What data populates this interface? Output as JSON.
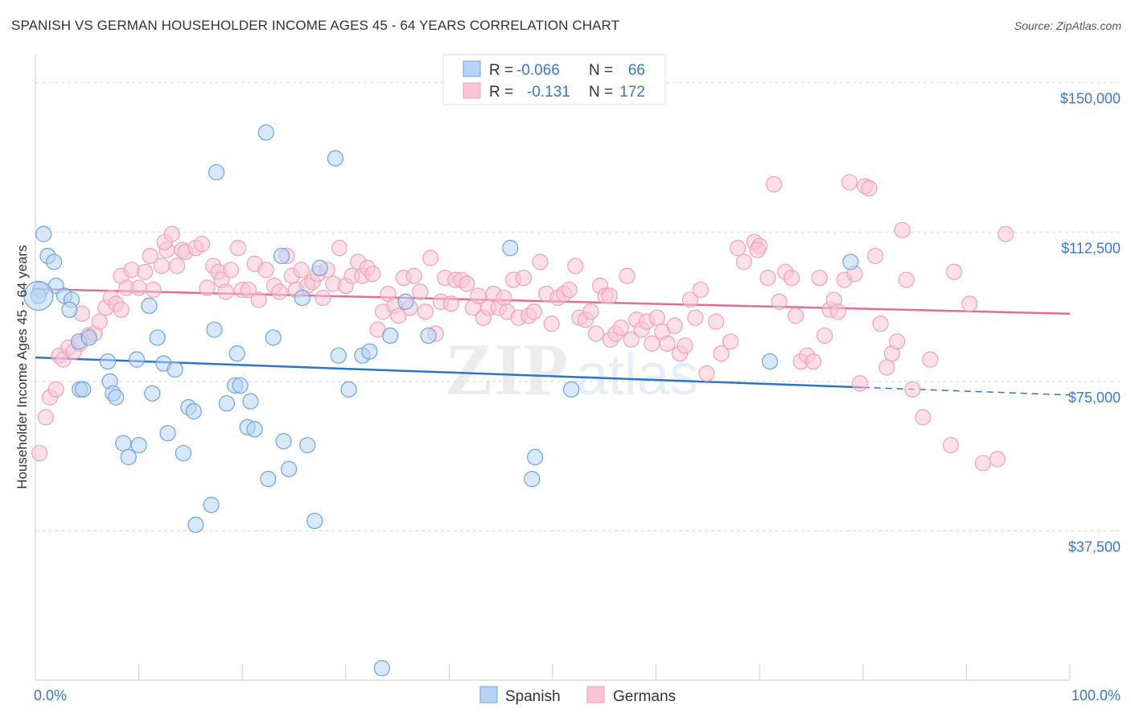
{
  "title": "SPANISH VS GERMAN HOUSEHOLDER INCOME AGES 45 - 64 YEARS CORRELATION CHART",
  "source": "Source: ZipAtlas.com",
  "watermark": {
    "zip": "ZIP",
    "atlas": "atlas"
  },
  "chart_data": {
    "type": "scatter",
    "xlabel": "",
    "ylabel": "Householder Income Ages 45 - 64 years",
    "xlim": [
      0,
      100
    ],
    "ylim": [
      0,
      155000
    ],
    "x_tick_labels": {
      "left": "0.0%",
      "right": "100.0%"
    },
    "y_ticks": [
      {
        "value": 150000,
        "label": "$150,000"
      },
      {
        "value": 112500,
        "label": "$112,500"
      },
      {
        "value": 75000,
        "label": "$75,000"
      },
      {
        "value": 37500,
        "label": "$37,500"
      }
    ],
    "legend_stats": [
      {
        "r_label": "R =",
        "r_value": "-0.066",
        "n_label": "N =",
        "n_value": "66"
      },
      {
        "r_label": "R =",
        "r_value": "-0.131",
        "n_label": "N =",
        "n_value": "172"
      }
    ],
    "series": [
      {
        "name": "Spanish",
        "color": "#6aa4e0",
        "fill": "#b8d4f4",
        "line_color": "#2e74c9",
        "trend": {
          "x0": 0,
          "y0": 81000,
          "x1": 80,
          "y1": 73500,
          "dash_to": 100,
          "dash_y": 71600
        },
        "points": [
          [
            0.5,
            98000
          ],
          [
            0.8,
            112000
          ],
          [
            1.2,
            106500
          ],
          [
            1.8,
            105000
          ],
          [
            2,
            99000
          ],
          [
            2.8,
            96500
          ],
          [
            3.5,
            95500
          ],
          [
            3.3,
            93000
          ],
          [
            4.2,
            85000
          ],
          [
            5.2,
            86000
          ],
          [
            4.3,
            73000
          ],
          [
            4.6,
            73000
          ],
          [
            7,
            80000
          ],
          [
            7.2,
            75000
          ],
          [
            7.5,
            72000
          ],
          [
            7.8,
            71000
          ],
          [
            8.5,
            59500
          ],
          [
            9,
            56000
          ],
          [
            10,
            59000
          ],
          [
            9.8,
            80500
          ],
          [
            11,
            94000
          ],
          [
            11.3,
            72000
          ],
          [
            11.8,
            86000
          ],
          [
            12.4,
            79500
          ],
          [
            13.5,
            78000
          ],
          [
            12.8,
            62000
          ],
          [
            14.3,
            57000
          ],
          [
            14.8,
            68500
          ],
          [
            15.3,
            67500
          ],
          [
            15.5,
            39000
          ],
          [
            17,
            44000
          ],
          [
            17.3,
            88000
          ],
          [
            17.5,
            127500
          ],
          [
            18.5,
            69500
          ],
          [
            19.3,
            74000
          ],
          [
            19.5,
            82000
          ],
          [
            19.8,
            74000
          ],
          [
            20.5,
            63500
          ],
          [
            20.8,
            70000
          ],
          [
            21.2,
            63000
          ],
          [
            22.3,
            137500
          ],
          [
            22.5,
            50500
          ],
          [
            23,
            86000
          ],
          [
            23.8,
            106500
          ],
          [
            24,
            60000
          ],
          [
            24.5,
            53000
          ],
          [
            25.8,
            96000
          ],
          [
            26.3,
            59000
          ],
          [
            27,
            40000
          ],
          [
            27.5,
            103500
          ],
          [
            29,
            131000
          ],
          [
            29.3,
            81500
          ],
          [
            30.3,
            73000
          ],
          [
            31.6,
            81500
          ],
          [
            32.3,
            82500
          ],
          [
            34.3,
            86500
          ],
          [
            33.5,
            3000
          ],
          [
            35.8,
            95000
          ],
          [
            38,
            86500
          ],
          [
            45.9,
            108500
          ],
          [
            48,
            50500
          ],
          [
            48.3,
            56000
          ],
          [
            51.8,
            73000
          ],
          [
            71,
            80000
          ],
          [
            78.8,
            105000
          ],
          [
            0.3,
            96500
          ]
        ]
      },
      {
        "name": "Germans",
        "color": "#f0a0ba",
        "fill": "#fac4d4",
        "line_color": "#e26d96",
        "trend": {
          "x0": 0,
          "y0": 98200,
          "x1": 100,
          "y1": 92000
        },
        "points": [
          [
            0.4,
            57000
          ],
          [
            1.0,
            66000
          ],
          [
            1.4,
            71000
          ],
          [
            2.0,
            73000
          ],
          [
            2.3,
            81500
          ],
          [
            2.7,
            80500
          ],
          [
            3.2,
            83500
          ],
          [
            3.7,
            82500
          ],
          [
            4.3,
            84500
          ],
          [
            4.5,
            92000
          ],
          [
            5.1,
            86500
          ],
          [
            5.7,
            87000
          ],
          [
            6.2,
            90000
          ],
          [
            6.8,
            93500
          ],
          [
            7.3,
            96000
          ],
          [
            7.8,
            94500
          ],
          [
            8.3,
            93000
          ],
          [
            8.3,
            101500
          ],
          [
            8.8,
            98500
          ],
          [
            9.3,
            103000
          ],
          [
            10,
            98500
          ],
          [
            10.6,
            102500
          ],
          [
            11.1,
            106500
          ],
          [
            11.4,
            98000
          ],
          [
            12.2,
            104000
          ],
          [
            12.7,
            108000
          ],
          [
            12.5,
            110000
          ],
          [
            13.2,
            112000
          ],
          [
            13.7,
            104000
          ],
          [
            14.2,
            108000
          ],
          [
            14.5,
            107500
          ],
          [
            15.5,
            108500
          ],
          [
            16.1,
            109500
          ],
          [
            16.6,
            98500
          ],
          [
            17.2,
            104000
          ],
          [
            17.7,
            102500
          ],
          [
            18,
            100500
          ],
          [
            18.4,
            97500
          ],
          [
            18.9,
            103000
          ],
          [
            19.6,
            108500
          ],
          [
            20,
            98000
          ],
          [
            20.6,
            98000
          ],
          [
            21.2,
            104500
          ],
          [
            21.6,
            95500
          ],
          [
            22.3,
            103000
          ],
          [
            23.1,
            99000
          ],
          [
            23.6,
            97500
          ],
          [
            24.3,
            106500
          ],
          [
            24.8,
            101500
          ],
          [
            25.2,
            98000
          ],
          [
            25.7,
            103000
          ],
          [
            26.3,
            99000
          ],
          [
            26.8,
            100000
          ],
          [
            27.3,
            102000
          ],
          [
            27.8,
            96000
          ],
          [
            28.2,
            103000
          ],
          [
            28.8,
            99500
          ],
          [
            29.4,
            108500
          ],
          [
            30,
            99000
          ],
          [
            30.6,
            101500
          ],
          [
            31.2,
            105000
          ],
          [
            31.6,
            101500
          ],
          [
            32.1,
            103500
          ],
          [
            32.6,
            102000
          ],
          [
            33.1,
            88000
          ],
          [
            33.6,
            92500
          ],
          [
            34.1,
            97000
          ],
          [
            34.7,
            94000
          ],
          [
            35.1,
            91500
          ],
          [
            35.6,
            101000
          ],
          [
            36.2,
            93500
          ],
          [
            36.6,
            101500
          ],
          [
            37.2,
            97500
          ],
          [
            37.7,
            92500
          ],
          [
            38.2,
            106000
          ],
          [
            38.7,
            87000
          ],
          [
            39.2,
            95000
          ],
          [
            39.6,
            101000
          ],
          [
            40.2,
            94500
          ],
          [
            40.6,
            100500
          ],
          [
            41.2,
            100500
          ],
          [
            41.7,
            99500
          ],
          [
            42.3,
            93500
          ],
          [
            42.8,
            96500
          ],
          [
            43.3,
            91000
          ],
          [
            43.8,
            93500
          ],
          [
            44.3,
            97000
          ],
          [
            44.8,
            93500
          ],
          [
            45.3,
            96000
          ],
          [
            45.6,
            92500
          ],
          [
            46.2,
            100500
          ],
          [
            46.7,
            91000
          ],
          [
            47.2,
            101000
          ],
          [
            47.7,
            91500
          ],
          [
            48.2,
            92500
          ],
          [
            48.8,
            105000
          ],
          [
            49.4,
            97000
          ],
          [
            49.9,
            89500
          ],
          [
            50.5,
            96000
          ],
          [
            51.1,
            97000
          ],
          [
            51.6,
            98000
          ],
          [
            52.2,
            104000
          ],
          [
            52.6,
            91000
          ],
          [
            53.2,
            90500
          ],
          [
            53.7,
            92500
          ],
          [
            54.2,
            87000
          ],
          [
            54.6,
            99000
          ],
          [
            55.1,
            96500
          ],
          [
            55.6,
            85500
          ],
          [
            56.1,
            87000
          ],
          [
            56.6,
            88500
          ],
          [
            57.2,
            101500
          ],
          [
            57.6,
            85500
          ],
          [
            58.1,
            90500
          ],
          [
            58.6,
            88000
          ],
          [
            59.1,
            90000
          ],
          [
            59.6,
            84500
          ],
          [
            60.1,
            91000
          ],
          [
            60.6,
            87500
          ],
          [
            61.1,
            84500
          ],
          [
            61.8,
            89000
          ],
          [
            62.3,
            82000
          ],
          [
            62.8,
            84000
          ],
          [
            63.3,
            95500
          ],
          [
            63.8,
            91000
          ],
          [
            64.3,
            98000
          ],
          [
            64.9,
            77000
          ],
          [
            65.8,
            90000
          ],
          [
            66.3,
            82000
          ],
          [
            67.2,
            85000
          ],
          [
            67.9,
            108500
          ],
          [
            68.5,
            105000
          ],
          [
            69.5,
            110000
          ],
          [
            70,
            109000
          ],
          [
            70.8,
            101000
          ],
          [
            71.4,
            124500
          ],
          [
            71.9,
            95000
          ],
          [
            72.5,
            102500
          ],
          [
            73.1,
            101000
          ],
          [
            73.5,
            91500
          ],
          [
            74,
            80000
          ],
          [
            74.6,
            81500
          ],
          [
            75.2,
            80000
          ],
          [
            75.8,
            101000
          ],
          [
            76.3,
            86500
          ],
          [
            76.8,
            93000
          ],
          [
            77.2,
            95500
          ],
          [
            77.6,
            92500
          ],
          [
            78.2,
            100500
          ],
          [
            78.7,
            125000
          ],
          [
            79.2,
            102000
          ],
          [
            80.2,
            124000
          ],
          [
            80.6,
            123500
          ],
          [
            81.2,
            106500
          ],
          [
            81.7,
            89500
          ],
          [
            82.3,
            78500
          ],
          [
            82.8,
            82000
          ],
          [
            83.3,
            85000
          ],
          [
            83.8,
            113000
          ],
          [
            84.2,
            100500
          ],
          [
            84.8,
            73000
          ],
          [
            85.8,
            66000
          ],
          [
            86.5,
            80500
          ],
          [
            88.5,
            59000
          ],
          [
            88.8,
            102500
          ],
          [
            90.3,
            94500
          ],
          [
            91.6,
            54500
          ],
          [
            93,
            55500
          ],
          [
            93.8,
            112000
          ],
          [
            79.7,
            74500
          ],
          [
            69.8,
            108000
          ],
          [
            55.5,
            96500
          ]
        ]
      }
    ]
  }
}
